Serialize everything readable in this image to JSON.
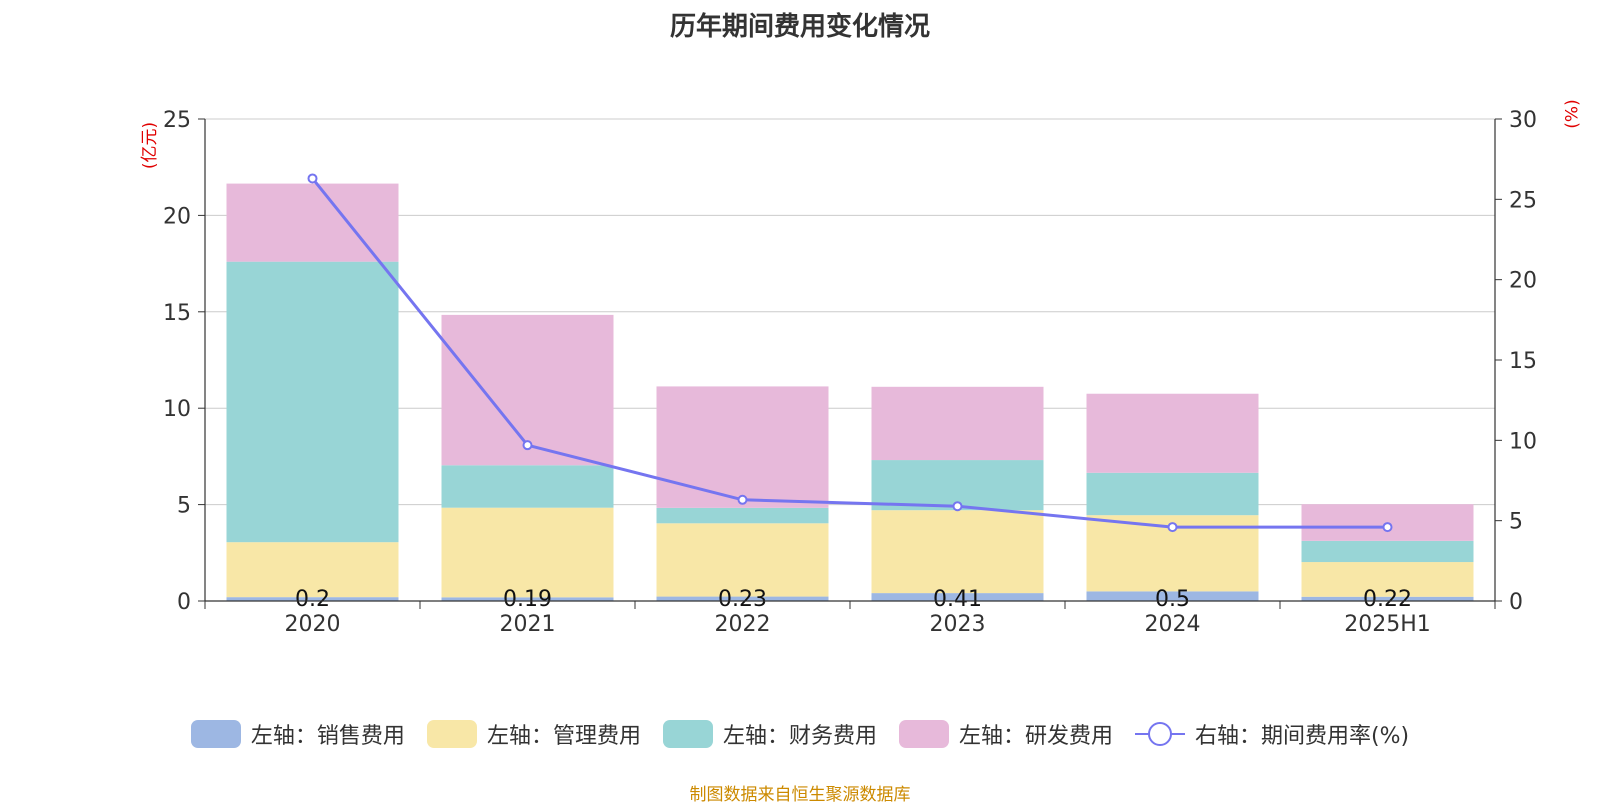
{
  "title": "历年期间费用变化情况",
  "left_unit": "(亿元)",
  "right_unit": "(%)",
  "source": "制图数据来自恒生聚源数据库",
  "legend": [
    {
      "label": "左轴：销售费用",
      "color": "#9db7e3",
      "type": "bar"
    },
    {
      "label": "左轴：管理费用",
      "color": "#f8e7a7",
      "type": "bar"
    },
    {
      "label": "左轴：财务费用",
      "color": "#98d5d6",
      "type": "bar"
    },
    {
      "label": "左轴：研发费用",
      "color": "#e7b9da",
      "type": "bar"
    },
    {
      "label": "右轴：期间费用率(%)",
      "color": "#7575f0",
      "type": "line"
    }
  ],
  "chart_data": {
    "type": "bar",
    "title": "历年期间费用变化情况",
    "categories": [
      "2020",
      "2021",
      "2022",
      "2023",
      "2024",
      "2025H1"
    ],
    "stacked": true,
    "ylim_left": [
      0,
      25
    ],
    "yticks_left": [
      0,
      5,
      10,
      15,
      20,
      25
    ],
    "ylim_right": [
      0,
      30
    ],
    "yticks_right": [
      0,
      5,
      10,
      15,
      20,
      25,
      30
    ],
    "series": [
      {
        "name": "左轴：销售费用",
        "axis": "left",
        "color": "#9db7e3",
        "values": [
          0.2,
          0.19,
          0.23,
          0.41,
          0.5,
          0.22
        ],
        "labels": [
          "0.2",
          "0.19",
          "0.23",
          "0.41",
          "0.5",
          "0.22"
        ]
      },
      {
        "name": "左轴：管理费用",
        "axis": "left",
        "color": "#f8e7a7",
        "values": [
          2.85,
          4.65,
          3.8,
          4.3,
          3.95,
          1.8
        ]
      },
      {
        "name": "左轴：财务费用",
        "axis": "left",
        "color": "#98d5d6",
        "values": [
          14.55,
          2.2,
          0.8,
          2.6,
          2.2,
          1.1
        ]
      },
      {
        "name": "左轴：研发费用",
        "axis": "left",
        "color": "#e7b9da",
        "values": [
          4.05,
          7.8,
          6.3,
          3.8,
          4.1,
          1.9
        ]
      },
      {
        "name": "右轴：期间费用率(%)",
        "axis": "right",
        "type": "line",
        "color": "#7575f0",
        "values": [
          26.3,
          9.7,
          6.3,
          5.9,
          4.6,
          4.6
        ]
      }
    ],
    "grid": true,
    "legend_position": "bottom"
  }
}
